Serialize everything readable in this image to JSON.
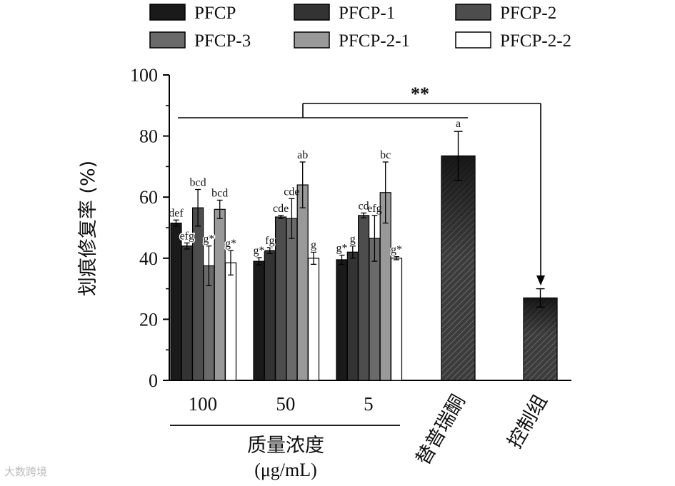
{
  "watermark": "大数跨境",
  "chart_data": {
    "type": "bar",
    "ylabel": "划痕修复率 (%)",
    "xlabel": "质量浓度",
    "xlabel_unit": "(μg/mL)",
    "ylim": [
      0,
      100
    ],
    "yticks": [
      0,
      20,
      40,
      60,
      80,
      100
    ],
    "categories": [
      "100",
      "50",
      "5"
    ],
    "legend": {
      "placement": "top",
      "entries": [
        "PFCP",
        "PFCP-1",
        "PFCP-2",
        "PFCP-3",
        "PFCP-2-1",
        "PFCP-2-2"
      ]
    },
    "series": [
      {
        "name": "PFCP",
        "color": "#1a1a1a",
        "values": [
          51.5,
          39.0,
          39.5
        ],
        "errors": [
          1.0,
          1.2,
          1.5
        ],
        "letters": [
          "def",
          "g*",
          "g*"
        ]
      },
      {
        "name": "PFCP-1",
        "color": "#333333",
        "values": [
          44.0,
          42.5,
          42.0
        ],
        "errors": [
          1.0,
          1.0,
          2.0
        ],
        "letters": [
          "efg",
          "fg",
          "g"
        ]
      },
      {
        "name": "PFCP-2",
        "color": "#4d4d4d",
        "values": [
          56.5,
          53.5,
          54.0
        ],
        "errors": [
          6.0,
          0.5,
          0.8
        ],
        "letters": [
          "bcd",
          "cde",
          "cd"
        ]
      },
      {
        "name": "PFCP-3",
        "color": "#6a6a6a",
        "values": [
          37.5,
          53.0,
          46.5
        ],
        "errors": [
          6.5,
          6.5,
          7.5
        ],
        "letters": [
          "g*",
          "cde",
          "efg"
        ]
      },
      {
        "name": "PFCP-2-1",
        "color": "#999999",
        "values": [
          56.0,
          64.0,
          61.5
        ],
        "errors": [
          3.0,
          7.5,
          10.0
        ],
        "letters": [
          "bcd",
          "ab",
          "bc"
        ]
      },
      {
        "name": "PFCP-2-2",
        "color": "#ffffff",
        "values": [
          38.5,
          40.0,
          40.0
        ],
        "errors": [
          4.0,
          2.0,
          0.5
        ],
        "letters": [
          "g*",
          "g",
          "g*"
        ]
      }
    ],
    "extra_bars": [
      {
        "label": "替普瑞酮",
        "value": 73.5,
        "error": 8.0,
        "letter": "a"
      },
      {
        "label": "控制组",
        "value": 27.0,
        "error": 3.0,
        "letter": ""
      }
    ],
    "significance": "**"
  }
}
